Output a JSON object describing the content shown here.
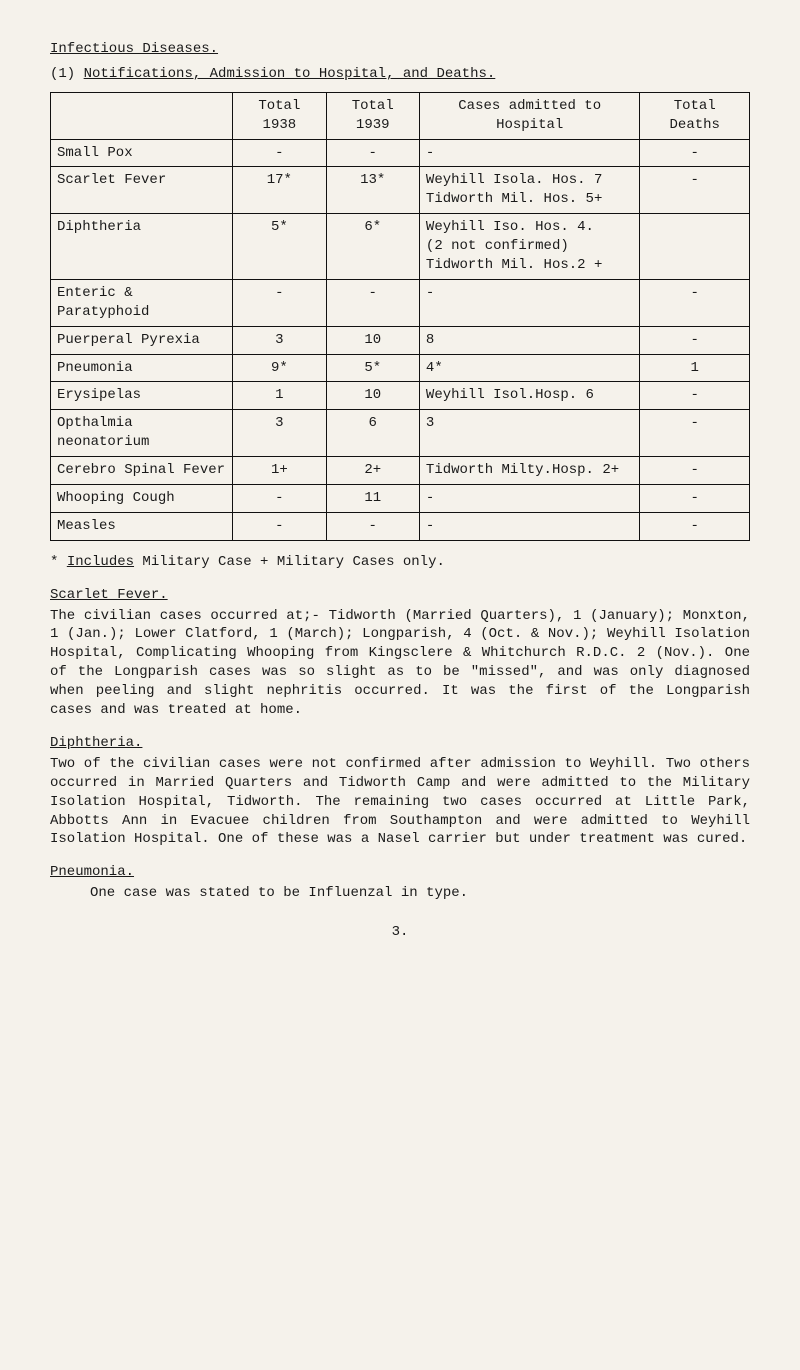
{
  "header": {
    "title": "Infectious Diseases.",
    "sub_numbered": "(1)",
    "sub_title": "Notifications, Admission to Hospital, and Deaths."
  },
  "table": {
    "columns": [
      "",
      "Total 1938",
      "Total 1939",
      "Cases admitted to Hospital",
      "Total Deaths"
    ],
    "rows": [
      [
        "Small Pox",
        "-",
        "-",
        "-",
        "-"
      ],
      [
        "Scarlet Fever",
        "17*",
        "13*",
        "Weyhill Isola. Hos. 7\nTidworth Mil. Hos. 5+",
        "-"
      ],
      [
        "Diphtheria",
        "5*",
        "6*",
        "Weyhill Iso. Hos. 4.\n(2 not confirmed)\nTidworth Mil. Hos.2 +",
        ""
      ],
      [
        "Enteric & Paratyphoid",
        "-",
        "-",
        "-",
        "-"
      ],
      [
        "Puerperal Pyrexia",
        "3",
        "10",
        "8",
        "-"
      ],
      [
        "Pneumonia",
        "9*",
        "5*",
        "4*",
        "1"
      ],
      [
        "Erysipelas",
        "1",
        "10",
        "Weyhill Isol.Hosp. 6",
        "-"
      ],
      [
        "Opthalmia neonatorium",
        "3",
        "6",
        "3",
        "-"
      ],
      [
        "Cerebro Spinal Fever",
        "1+",
        "2+",
        "Tidworth Milty.Hosp. 2+",
        "-"
      ],
      [
        "Whooping Cough",
        "-",
        "11",
        "-",
        "-"
      ],
      [
        "Measles",
        "-",
        "-",
        "-",
        "-"
      ]
    ]
  },
  "footnote": "* Includes Military Case   + Military Cases only.",
  "sections": {
    "scarlet": {
      "title": "Scarlet Fever.",
      "text": "The civilian cases occurred at;- Tidworth (Married Quarters), 1 (January); Monxton, 1 (Jan.); Lower Clatford, 1 (March); Longparish, 4 (Oct. & Nov.); Weyhill Isolation Hospital, Complicating Whooping from Kingsclere & Whitchurch R.D.C. 2 (Nov.). One of the Longparish cases was so slight as to be \"missed\", and was only diagnosed when peeling and slight nephritis occurred. It was the first of the Longparish cases and was treated at home."
    },
    "diphtheria": {
      "title": "Diphtheria.",
      "text": "Two of the civilian cases were not confirmed after admission to Weyhill. Two others occurred in Married Quarters and Tidworth Camp and were admitted to the Military Isolation Hospital, Tidworth. The remaining two cases occurred at Little Park, Abbotts Ann in Evacuee children from Southampton and were admitted to Weyhill Isolation Hospital. One of these was a Nasel carrier but under treatment was cured."
    },
    "pneumonia": {
      "title": "Pneumonia.",
      "text": "One case was stated to be Influenzal in type."
    }
  },
  "page_number": "3."
}
